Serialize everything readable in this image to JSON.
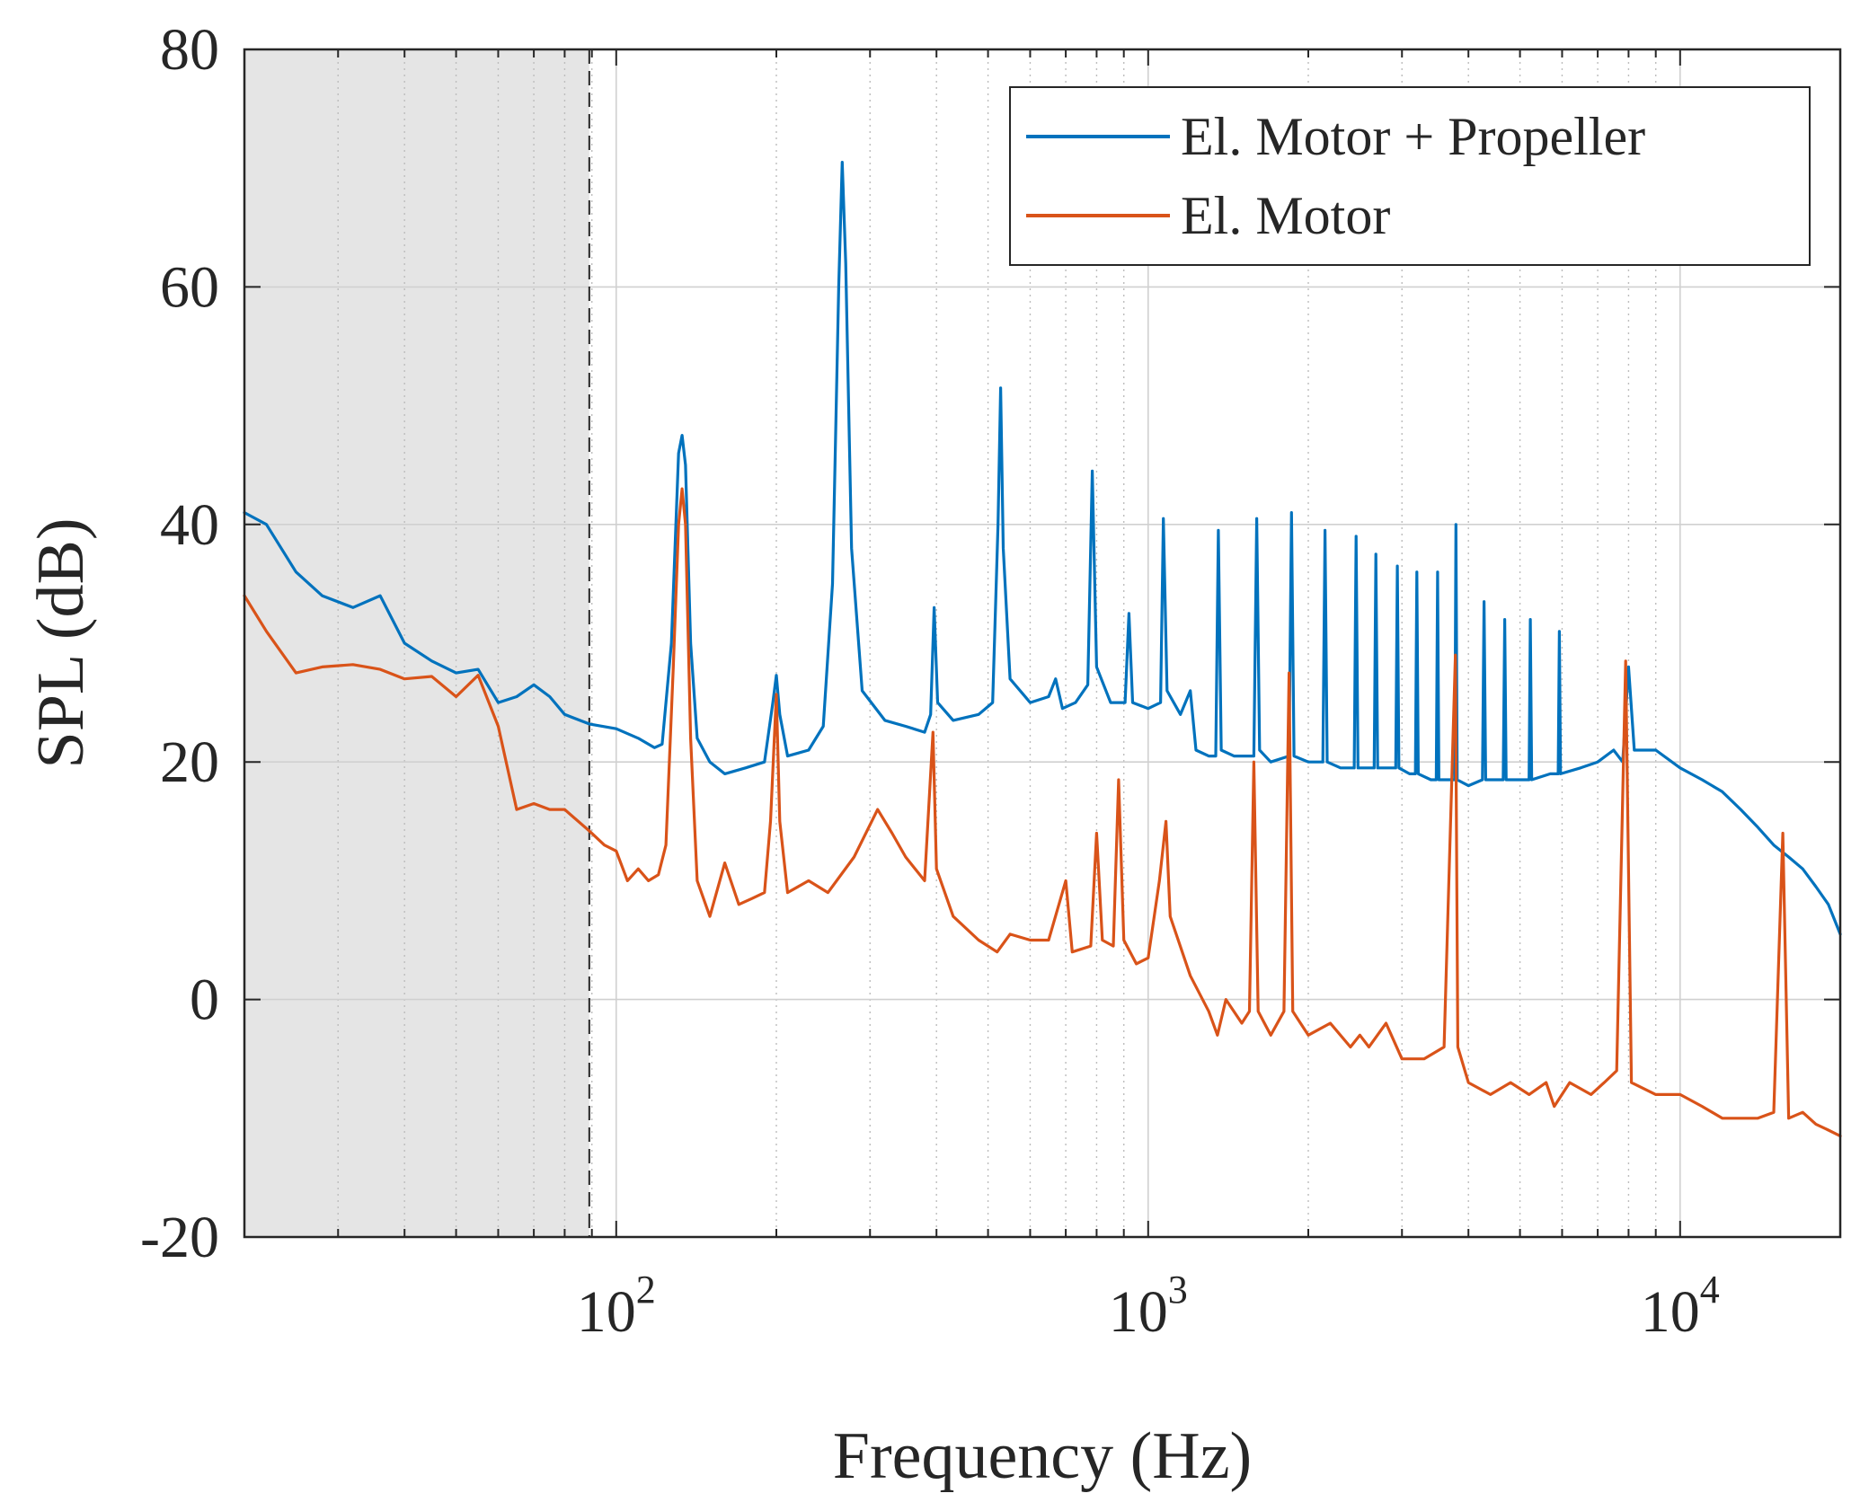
{
  "chart_data": {
    "type": "line",
    "title": "",
    "xlabel": "Frequency (Hz)",
    "ylabel": "SPL (dB)",
    "xscale": "log",
    "xlim": [
      20,
      20000
    ],
    "ylim": [
      -20,
      80
    ],
    "yticks": [
      -20,
      0,
      20,
      40,
      60,
      80
    ],
    "ytick_labels": [
      "-20",
      "0",
      "20",
      "40",
      "60",
      "80"
    ],
    "xticks": [
      {
        "value": 100,
        "base": "10",
        "exp": "2"
      },
      {
        "value": 1000,
        "base": "10",
        "exp": "3"
      },
      {
        "value": 10000,
        "base": "10",
        "exp": "4"
      }
    ],
    "grid": true,
    "legend_position": "top-right",
    "shaded_region": {
      "x_from": 20,
      "x_to": 89,
      "color": "#e5e5e5"
    },
    "series": [
      {
        "name": "El. Motor + Propeller",
        "color": "#0072bd",
        "points": [
          [
            20,
            41
          ],
          [
            22,
            40
          ],
          [
            25,
            36
          ],
          [
            28,
            34
          ],
          [
            32,
            33
          ],
          [
            36,
            34
          ],
          [
            40,
            30
          ],
          [
            45,
            28.5
          ],
          [
            50,
            27.5
          ],
          [
            55,
            27.8
          ],
          [
            60,
            25
          ],
          [
            65,
            25.5
          ],
          [
            70,
            26.5
          ],
          [
            75,
            25.5
          ],
          [
            80,
            24
          ],
          [
            89,
            23.2
          ],
          [
            100,
            22.8
          ],
          [
            110,
            22
          ],
          [
            118,
            21.2
          ],
          [
            122,
            21.5
          ],
          [
            127,
            30
          ],
          [
            131,
            46
          ],
          [
            133,
            47.5
          ],
          [
            135,
            45
          ],
          [
            138,
            30
          ],
          [
            142,
            22
          ],
          [
            150,
            20
          ],
          [
            160,
            19
          ],
          [
            175,
            19.5
          ],
          [
            190,
            20
          ],
          [
            197,
            25
          ],
          [
            200,
            27.3
          ],
          [
            203,
            24
          ],
          [
            210,
            20.5
          ],
          [
            230,
            21
          ],
          [
            245,
            23
          ],
          [
            255,
            35
          ],
          [
            262,
            60
          ],
          [
            266,
            70.5
          ],
          [
            270,
            62
          ],
          [
            277,
            38
          ],
          [
            290,
            26
          ],
          [
            320,
            23.5
          ],
          [
            350,
            23
          ],
          [
            380,
            22.5
          ],
          [
            390,
            24
          ],
          [
            396,
            33
          ],
          [
            402,
            25
          ],
          [
            430,
            23.5
          ],
          [
            480,
            24
          ],
          [
            510,
            25
          ],
          [
            522,
            40
          ],
          [
            528,
            51.5
          ],
          [
            534,
            38
          ],
          [
            550,
            27
          ],
          [
            600,
            25
          ],
          [
            650,
            25.5
          ],
          [
            670,
            27
          ],
          [
            690,
            24.5
          ],
          [
            730,
            25
          ],
          [
            770,
            26.5
          ],
          [
            785,
            44.5
          ],
          [
            800,
            28
          ],
          [
            850,
            25
          ],
          [
            905,
            25
          ],
          [
            920,
            32.5
          ],
          [
            935,
            25
          ],
          [
            1000,
            24.5
          ],
          [
            1055,
            25
          ],
          [
            1068,
            40.5
          ],
          [
            1085,
            26
          ],
          [
            1150,
            24
          ],
          [
            1200,
            26
          ],
          [
            1230,
            21
          ],
          [
            1300,
            20.5
          ],
          [
            1340,
            20.5
          ],
          [
            1355,
            39.5
          ],
          [
            1372,
            21
          ],
          [
            1450,
            20.5
          ],
          [
            1580,
            20.5
          ],
          [
            1600,
            40.5
          ],
          [
            1620,
            21
          ],
          [
            1700,
            20
          ],
          [
            1840,
            20.5
          ],
          [
            1860,
            41
          ],
          [
            1880,
            20.5
          ],
          [
            2000,
            20
          ],
          [
            2130,
            20
          ],
          [
            2150,
            39.5
          ],
          [
            2170,
            20
          ],
          [
            2300,
            19.5
          ],
          [
            2440,
            19.5
          ],
          [
            2460,
            39
          ],
          [
            2480,
            19.5
          ],
          [
            2600,
            19.5
          ],
          [
            2660,
            19.5
          ],
          [
            2680,
            37.5
          ],
          [
            2700,
            19.5
          ],
          [
            2800,
            19.5
          ],
          [
            2920,
            19.5
          ],
          [
            2940,
            36.5
          ],
          [
            2960,
            19.5
          ],
          [
            3100,
            19
          ],
          [
            3180,
            19
          ],
          [
            3200,
            36
          ],
          [
            3220,
            19
          ],
          [
            3400,
            18.5
          ],
          [
            3480,
            18.5
          ],
          [
            3500,
            36
          ],
          [
            3520,
            18.5
          ],
          [
            3700,
            18.5
          ],
          [
            3770,
            18.5
          ],
          [
            3790,
            40
          ],
          [
            3810,
            18.5
          ],
          [
            4000,
            18
          ],
          [
            4250,
            18.5
          ],
          [
            4280,
            33.5
          ],
          [
            4310,
            18.5
          ],
          [
            4500,
            18.5
          ],
          [
            4650,
            18.5
          ],
          [
            4680,
            32
          ],
          [
            4710,
            18.5
          ],
          [
            5000,
            18.5
          ],
          [
            5200,
            18.5
          ],
          [
            5230,
            32
          ],
          [
            5260,
            18.5
          ],
          [
            5700,
            19
          ],
          [
            5900,
            19
          ],
          [
            5930,
            31
          ],
          [
            5960,
            19
          ],
          [
            6500,
            19.5
          ],
          [
            7000,
            20
          ],
          [
            7500,
            21
          ],
          [
            7800,
            20
          ],
          [
            8000,
            28
          ],
          [
            8200,
            21
          ],
          [
            9000,
            21
          ],
          [
            10000,
            19.5
          ],
          [
            11000,
            18.5
          ],
          [
            12000,
            17.5
          ],
          [
            13000,
            16
          ],
          [
            14000,
            14.5
          ],
          [
            15000,
            13
          ],
          [
            16000,
            12
          ],
          [
            17000,
            11
          ],
          [
            18000,
            9.5
          ],
          [
            19000,
            8
          ],
          [
            20000,
            5.5
          ]
        ]
      },
      {
        "name": "El. Motor",
        "color": "#d95319",
        "points": [
          [
            20,
            34
          ],
          [
            22,
            31
          ],
          [
            25,
            27.5
          ],
          [
            28,
            28
          ],
          [
            32,
            28.2
          ],
          [
            36,
            27.8
          ],
          [
            40,
            27
          ],
          [
            45,
            27.2
          ],
          [
            50,
            25.5
          ],
          [
            55,
            27.3
          ],
          [
            60,
            23
          ],
          [
            65,
            16
          ],
          [
            70,
            16.5
          ],
          [
            75,
            16
          ],
          [
            80,
            16
          ],
          [
            89,
            14.2
          ],
          [
            95,
            13
          ],
          [
            100,
            12.5
          ],
          [
            105,
            10
          ],
          [
            110,
            11
          ],
          [
            115,
            10
          ],
          [
            120,
            10.5
          ],
          [
            124,
            13
          ],
          [
            128,
            28
          ],
          [
            131,
            40
          ],
          [
            133,
            43
          ],
          [
            135,
            40
          ],
          [
            138,
            22
          ],
          [
            142,
            10
          ],
          [
            150,
            7
          ],
          [
            160,
            11.5
          ],
          [
            170,
            8
          ],
          [
            180,
            8.5
          ],
          [
            190,
            9
          ],
          [
            195,
            15
          ],
          [
            200,
            25.7
          ],
          [
            203,
            15
          ],
          [
            210,
            9
          ],
          [
            230,
            10
          ],
          [
            250,
            9
          ],
          [
            280,
            12
          ],
          [
            310,
            16
          ],
          [
            330,
            14
          ],
          [
            350,
            12
          ],
          [
            380,
            10
          ],
          [
            394,
            22.5
          ],
          [
            400,
            11
          ],
          [
            430,
            7
          ],
          [
            480,
            5
          ],
          [
            520,
            4
          ],
          [
            550,
            5.5
          ],
          [
            600,
            5
          ],
          [
            650,
            5
          ],
          [
            700,
            10
          ],
          [
            720,
            4
          ],
          [
            780,
            4.5
          ],
          [
            800,
            14
          ],
          [
            820,
            5
          ],
          [
            860,
            4.5
          ],
          [
            880,
            18.5
          ],
          [
            900,
            5
          ],
          [
            950,
            3
          ],
          [
            1000,
            3.5
          ],
          [
            1050,
            10
          ],
          [
            1080,
            15
          ],
          [
            1100,
            7
          ],
          [
            1200,
            2
          ],
          [
            1300,
            -1
          ],
          [
            1350,
            -3
          ],
          [
            1400,
            0
          ],
          [
            1500,
            -2
          ],
          [
            1550,
            -1
          ],
          [
            1580,
            20
          ],
          [
            1610,
            -1
          ],
          [
            1700,
            -3
          ],
          [
            1800,
            -1
          ],
          [
            1840,
            27.5
          ],
          [
            1870,
            -1
          ],
          [
            2000,
            -3
          ],
          [
            2200,
            -2
          ],
          [
            2400,
            -4
          ],
          [
            2500,
            -3
          ],
          [
            2600,
            -4
          ],
          [
            2800,
            -2
          ],
          [
            3000,
            -5
          ],
          [
            3300,
            -5
          ],
          [
            3600,
            -4
          ],
          [
            3780,
            29
          ],
          [
            3820,
            -4
          ],
          [
            4000,
            -7
          ],
          [
            4400,
            -8
          ],
          [
            4800,
            -7
          ],
          [
            5200,
            -8
          ],
          [
            5600,
            -7
          ],
          [
            5800,
            -9
          ],
          [
            6200,
            -7
          ],
          [
            6800,
            -8
          ],
          [
            7200,
            -7
          ],
          [
            7600,
            -6
          ],
          [
            7900,
            28.5
          ],
          [
            8100,
            -7
          ],
          [
            9000,
            -8
          ],
          [
            10000,
            -8
          ],
          [
            11000,
            -9
          ],
          [
            12000,
            -10
          ],
          [
            13000,
            -10
          ],
          [
            14000,
            -10
          ],
          [
            15000,
            -9.5
          ],
          [
            15600,
            14
          ],
          [
            16000,
            -10
          ],
          [
            17000,
            -9.5
          ],
          [
            18000,
            -10.5
          ],
          [
            19000,
            -11
          ],
          [
            20000,
            -11.5
          ]
        ]
      }
    ]
  }
}
